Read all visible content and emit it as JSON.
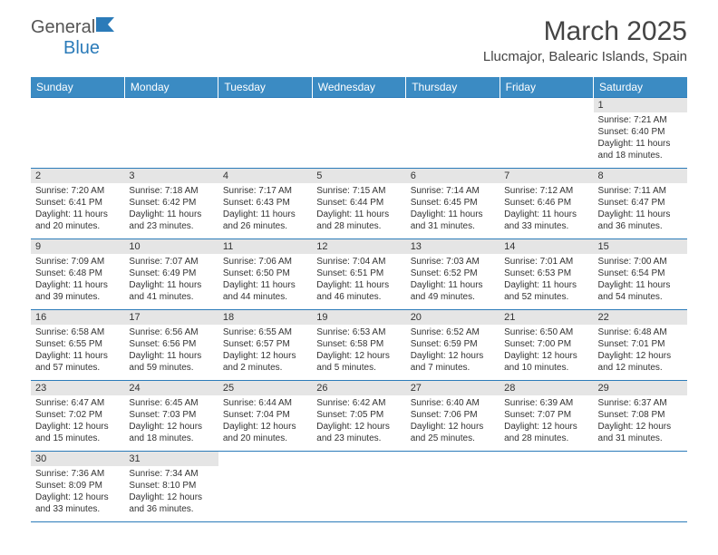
{
  "header": {
    "logo_text_1": "General",
    "logo_text_2": "Blue",
    "month_title": "March 2025",
    "location": "Llucmajor, Balearic Islands, Spain"
  },
  "colors": {
    "header_bg": "#3b8bc3",
    "header_text": "#ffffff",
    "border": "#2b7bb9",
    "daynum_bg": "#e5e5e5",
    "logo_blue": "#2b7bb9"
  },
  "typography": {
    "month_fontsize": 30,
    "location_fontsize": 15,
    "dayhead_fontsize": 12,
    "daynum_fontsize": 11,
    "content_fontsize": 10
  },
  "day_headers": [
    "Sunday",
    "Monday",
    "Tuesday",
    "Wednesday",
    "Thursday",
    "Friday",
    "Saturday"
  ],
  "weeks": [
    [
      {
        "blank": true
      },
      {
        "blank": true
      },
      {
        "blank": true
      },
      {
        "blank": true
      },
      {
        "blank": true
      },
      {
        "blank": true
      },
      {
        "num": "1",
        "sunrise": "Sunrise: 7:21 AM",
        "sunset": "Sunset: 6:40 PM",
        "daylight": "Daylight: 11 hours and 18 minutes."
      }
    ],
    [
      {
        "num": "2",
        "sunrise": "Sunrise: 7:20 AM",
        "sunset": "Sunset: 6:41 PM",
        "daylight": "Daylight: 11 hours and 20 minutes."
      },
      {
        "num": "3",
        "sunrise": "Sunrise: 7:18 AM",
        "sunset": "Sunset: 6:42 PM",
        "daylight": "Daylight: 11 hours and 23 minutes."
      },
      {
        "num": "4",
        "sunrise": "Sunrise: 7:17 AM",
        "sunset": "Sunset: 6:43 PM",
        "daylight": "Daylight: 11 hours and 26 minutes."
      },
      {
        "num": "5",
        "sunrise": "Sunrise: 7:15 AM",
        "sunset": "Sunset: 6:44 PM",
        "daylight": "Daylight: 11 hours and 28 minutes."
      },
      {
        "num": "6",
        "sunrise": "Sunrise: 7:14 AM",
        "sunset": "Sunset: 6:45 PM",
        "daylight": "Daylight: 11 hours and 31 minutes."
      },
      {
        "num": "7",
        "sunrise": "Sunrise: 7:12 AM",
        "sunset": "Sunset: 6:46 PM",
        "daylight": "Daylight: 11 hours and 33 minutes."
      },
      {
        "num": "8",
        "sunrise": "Sunrise: 7:11 AM",
        "sunset": "Sunset: 6:47 PM",
        "daylight": "Daylight: 11 hours and 36 minutes."
      }
    ],
    [
      {
        "num": "9",
        "sunrise": "Sunrise: 7:09 AM",
        "sunset": "Sunset: 6:48 PM",
        "daylight": "Daylight: 11 hours and 39 minutes."
      },
      {
        "num": "10",
        "sunrise": "Sunrise: 7:07 AM",
        "sunset": "Sunset: 6:49 PM",
        "daylight": "Daylight: 11 hours and 41 minutes."
      },
      {
        "num": "11",
        "sunrise": "Sunrise: 7:06 AM",
        "sunset": "Sunset: 6:50 PM",
        "daylight": "Daylight: 11 hours and 44 minutes."
      },
      {
        "num": "12",
        "sunrise": "Sunrise: 7:04 AM",
        "sunset": "Sunset: 6:51 PM",
        "daylight": "Daylight: 11 hours and 46 minutes."
      },
      {
        "num": "13",
        "sunrise": "Sunrise: 7:03 AM",
        "sunset": "Sunset: 6:52 PM",
        "daylight": "Daylight: 11 hours and 49 minutes."
      },
      {
        "num": "14",
        "sunrise": "Sunrise: 7:01 AM",
        "sunset": "Sunset: 6:53 PM",
        "daylight": "Daylight: 11 hours and 52 minutes."
      },
      {
        "num": "15",
        "sunrise": "Sunrise: 7:00 AM",
        "sunset": "Sunset: 6:54 PM",
        "daylight": "Daylight: 11 hours and 54 minutes."
      }
    ],
    [
      {
        "num": "16",
        "sunrise": "Sunrise: 6:58 AM",
        "sunset": "Sunset: 6:55 PM",
        "daylight": "Daylight: 11 hours and 57 minutes."
      },
      {
        "num": "17",
        "sunrise": "Sunrise: 6:56 AM",
        "sunset": "Sunset: 6:56 PM",
        "daylight": "Daylight: 11 hours and 59 minutes."
      },
      {
        "num": "18",
        "sunrise": "Sunrise: 6:55 AM",
        "sunset": "Sunset: 6:57 PM",
        "daylight": "Daylight: 12 hours and 2 minutes."
      },
      {
        "num": "19",
        "sunrise": "Sunrise: 6:53 AM",
        "sunset": "Sunset: 6:58 PM",
        "daylight": "Daylight: 12 hours and 5 minutes."
      },
      {
        "num": "20",
        "sunrise": "Sunrise: 6:52 AM",
        "sunset": "Sunset: 6:59 PM",
        "daylight": "Daylight: 12 hours and 7 minutes."
      },
      {
        "num": "21",
        "sunrise": "Sunrise: 6:50 AM",
        "sunset": "Sunset: 7:00 PM",
        "daylight": "Daylight: 12 hours and 10 minutes."
      },
      {
        "num": "22",
        "sunrise": "Sunrise: 6:48 AM",
        "sunset": "Sunset: 7:01 PM",
        "daylight": "Daylight: 12 hours and 12 minutes."
      }
    ],
    [
      {
        "num": "23",
        "sunrise": "Sunrise: 6:47 AM",
        "sunset": "Sunset: 7:02 PM",
        "daylight": "Daylight: 12 hours and 15 minutes."
      },
      {
        "num": "24",
        "sunrise": "Sunrise: 6:45 AM",
        "sunset": "Sunset: 7:03 PM",
        "daylight": "Daylight: 12 hours and 18 minutes."
      },
      {
        "num": "25",
        "sunrise": "Sunrise: 6:44 AM",
        "sunset": "Sunset: 7:04 PM",
        "daylight": "Daylight: 12 hours and 20 minutes."
      },
      {
        "num": "26",
        "sunrise": "Sunrise: 6:42 AM",
        "sunset": "Sunset: 7:05 PM",
        "daylight": "Daylight: 12 hours and 23 minutes."
      },
      {
        "num": "27",
        "sunrise": "Sunrise: 6:40 AM",
        "sunset": "Sunset: 7:06 PM",
        "daylight": "Daylight: 12 hours and 25 minutes."
      },
      {
        "num": "28",
        "sunrise": "Sunrise: 6:39 AM",
        "sunset": "Sunset: 7:07 PM",
        "daylight": "Daylight: 12 hours and 28 minutes."
      },
      {
        "num": "29",
        "sunrise": "Sunrise: 6:37 AM",
        "sunset": "Sunset: 7:08 PM",
        "daylight": "Daylight: 12 hours and 31 minutes."
      }
    ],
    [
      {
        "num": "30",
        "sunrise": "Sunrise: 7:36 AM",
        "sunset": "Sunset: 8:09 PM",
        "daylight": "Daylight: 12 hours and 33 minutes."
      },
      {
        "num": "31",
        "sunrise": "Sunrise: 7:34 AM",
        "sunset": "Sunset: 8:10 PM",
        "daylight": "Daylight: 12 hours and 36 minutes."
      },
      {
        "blank": true
      },
      {
        "blank": true
      },
      {
        "blank": true
      },
      {
        "blank": true
      },
      {
        "blank": true
      }
    ]
  ]
}
